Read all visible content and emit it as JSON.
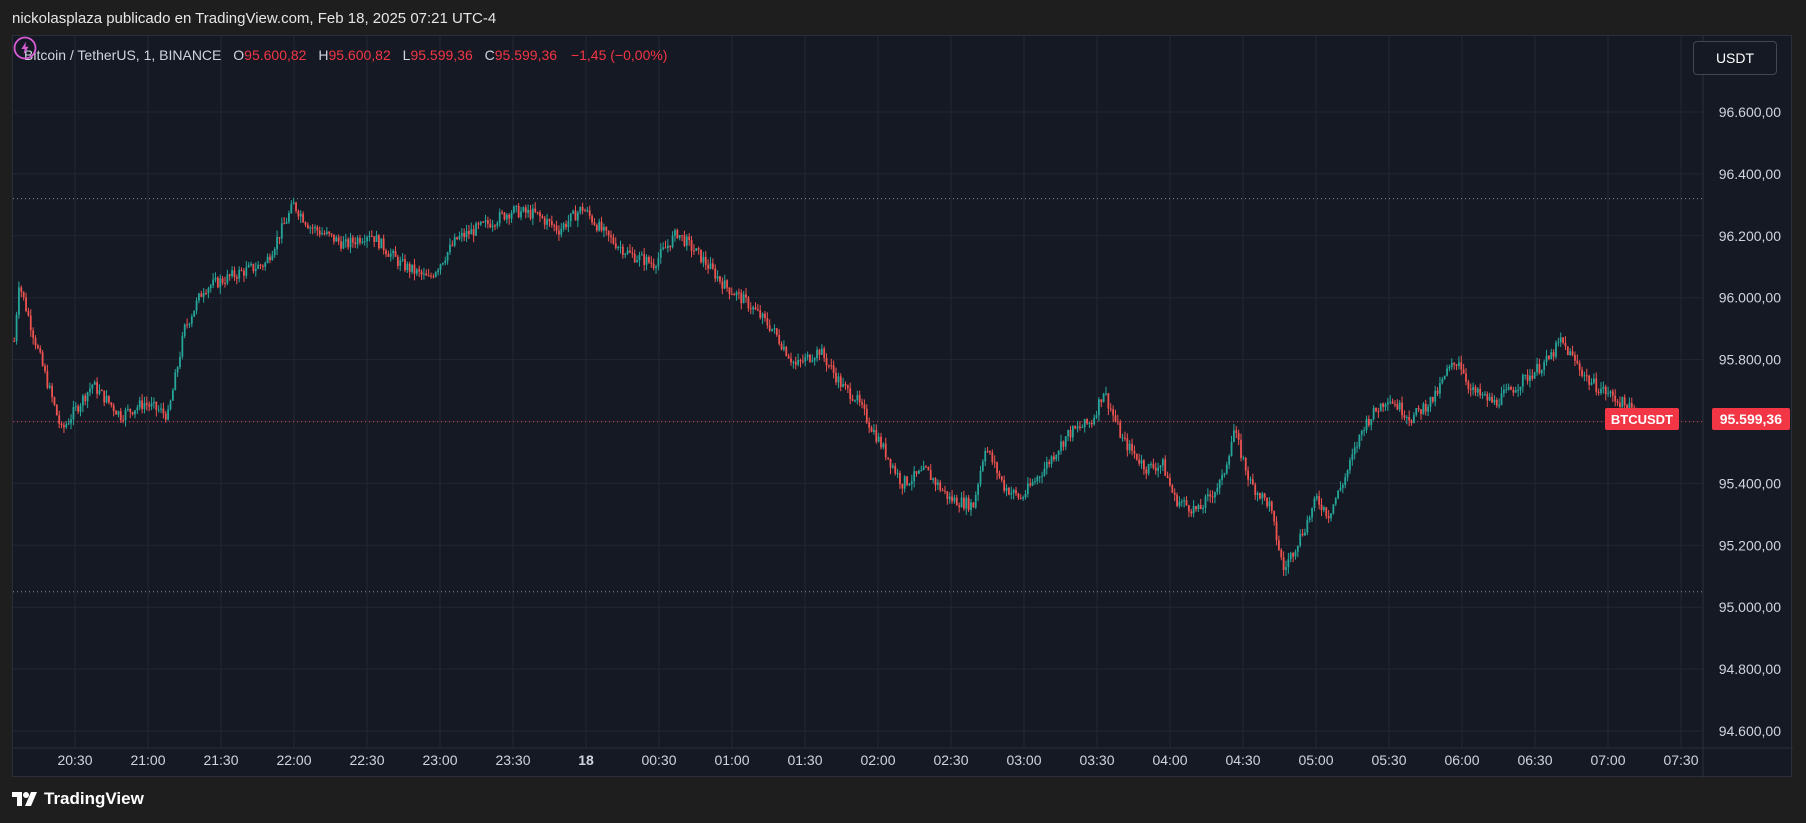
{
  "header": {
    "text": "nickolasplaza publicado en TradingView.com, Feb 18, 2025 07:21 UTC-4"
  },
  "legend": {
    "symbol": "Bitcoin / TetherUS, 1, BINANCE",
    "open_key": "O",
    "open": "95.600,82",
    "high_key": "H",
    "high": "95.600,82",
    "low_key": "L",
    "low": "95.599,36",
    "close_key": "C",
    "close": "95.599,36",
    "change": "−1,45 (−0,00%)"
  },
  "currency_button": "USDT",
  "price_label": "95.599,36",
  "symbol_label": "BTCUSDT",
  "footer": {
    "brand": "TradingView"
  },
  "colors": {
    "background": "#151924",
    "up": "#26a69a",
    "down": "#ef5350",
    "grid": "#232733",
    "text": "#d1d4dc",
    "price_line": "#f23645",
    "bolt": "#d85cd4"
  },
  "chart_data": {
    "type": "candlestick",
    "title": "",
    "xlabel": "",
    "ylabel": "",
    "ylim": [
      94550,
      96800
    ],
    "y_ticks": [
      94600,
      94800,
      95000,
      95200,
      95400,
      95600,
      95800,
      96000,
      96200,
      96400,
      96600
    ],
    "y_tick_labels": [
      "94.600,00",
      "94.800,00",
      "95.000,00",
      "95.200,00",
      "95.400,00",
      "95.600,00",
      "95.800,00",
      "96.000,00",
      "96.200,00",
      "96.400,00",
      "96.600,00"
    ],
    "x_tick_labels": [
      "20:30",
      "21:00",
      "21:30",
      "22:00",
      "22:30",
      "23:00",
      "23:30",
      "18",
      "00:30",
      "01:00",
      "01:30",
      "02:00",
      "02:30",
      "03:00",
      "03:30",
      "04:00",
      "04:30",
      "05:00",
      "05:30",
      "06:00",
      "06:30",
      "07:00",
      "07:30"
    ],
    "x_tick_bold": "18",
    "reference_levels": [
      96320,
      95599.36,
      95050
    ],
    "last_price": 95599.36,
    "price_path": [
      [
        0,
        95860
      ],
      [
        2,
        96050
      ],
      [
        10,
        95830
      ],
      [
        20,
        95570
      ],
      [
        33,
        95720
      ],
      [
        45,
        95620
      ],
      [
        55,
        95660
      ],
      [
        65,
        95620
      ],
      [
        72,
        95900
      ],
      [
        80,
        96030
      ],
      [
        95,
        96080
      ],
      [
        106,
        96110
      ],
      [
        118,
        96300
      ],
      [
        125,
        96230
      ],
      [
        140,
        96170
      ],
      [
        150,
        96210
      ],
      [
        163,
        96110
      ],
      [
        175,
        96060
      ],
      [
        187,
        96190
      ],
      [
        200,
        96240
      ],
      [
        210,
        96280
      ],
      [
        220,
        96270
      ],
      [
        230,
        96220
      ],
      [
        240,
        96290
      ],
      [
        250,
        96200
      ],
      [
        260,
        96140
      ],
      [
        270,
        96110
      ],
      [
        280,
        96210
      ],
      [
        290,
        96130
      ],
      [
        300,
        96040
      ],
      [
        310,
        95980
      ],
      [
        320,
        95900
      ],
      [
        330,
        95780
      ],
      [
        340,
        95830
      ],
      [
        350,
        95710
      ],
      [
        355,
        95680
      ],
      [
        365,
        95540
      ],
      [
        375,
        95400
      ],
      [
        385,
        95440
      ],
      [
        395,
        95350
      ],
      [
        405,
        95330
      ],
      [
        410,
        95520
      ],
      [
        418,
        95390
      ],
      [
        425,
        95350
      ],
      [
        435,
        95450
      ],
      [
        445,
        95560
      ],
      [
        455,
        95600
      ],
      [
        460,
        95700
      ],
      [
        468,
        95540
      ],
      [
        478,
        95450
      ],
      [
        485,
        95460
      ],
      [
        490,
        95350
      ],
      [
        500,
        95310
      ],
      [
        510,
        95410
      ],
      [
        515,
        95570
      ],
      [
        522,
        95400
      ],
      [
        530,
        95330
      ],
      [
        536,
        95120
      ],
      [
        545,
        95260
      ],
      [
        550,
        95350
      ],
      [
        555,
        95300
      ],
      [
        562,
        95420
      ],
      [
        570,
        95590
      ],
      [
        580,
        95680
      ],
      [
        590,
        95610
      ],
      [
        600,
        95680
      ],
      [
        605,
        95760
      ],
      [
        610,
        95800
      ],
      [
        615,
        95700
      ],
      [
        625,
        95660
      ],
      [
        635,
        95720
      ],
      [
        648,
        95800
      ],
      [
        653,
        95860
      ],
      [
        665,
        95730
      ],
      [
        675,
        95680
      ],
      [
        686,
        95620
      ],
      [
        695,
        95600
      ]
    ]
  }
}
